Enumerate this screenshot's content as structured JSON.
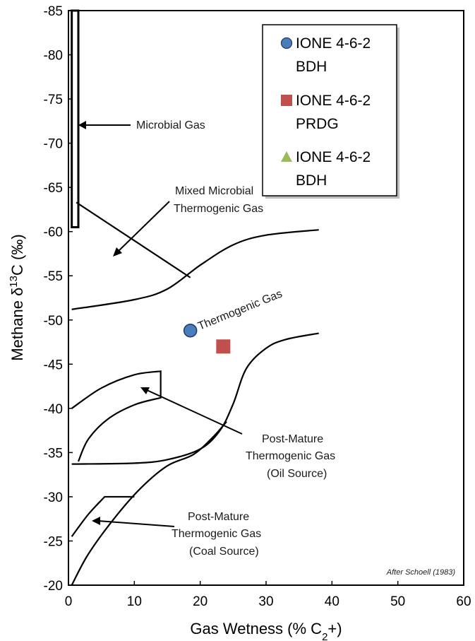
{
  "chart_data": {
    "type": "scatter",
    "xlabel": "Gas Wetness (% C",
    "xlabel_sub": "2",
    "xlabel_tail": "+)",
    "ylabel": "Methane  δ",
    "ylabel_sup": "13",
    "ylabel_tail": "C (‰)",
    "xlim": [
      0,
      60
    ],
    "ylim": [
      -20,
      -85
    ],
    "x_ticks": [
      "0",
      "10",
      "20",
      "30",
      "40",
      "50",
      "60"
    ],
    "y_ticks": [
      "-85",
      "-80",
      "-75",
      "-70",
      "-65",
      "-60",
      "-55",
      "-50",
      "-45",
      "-40",
      "-35",
      "-30",
      "-25",
      "-20"
    ],
    "grid": false,
    "legend_position": "top-right",
    "series": [
      {
        "name": "IONE 4-6-2 BDH",
        "name_lines": [
          "IONE 4-6-2",
          "BDH"
        ],
        "marker": "circle",
        "color": "#4a7ebb",
        "points": [
          [
            18.5,
            -48.8
          ]
        ]
      },
      {
        "name": "IONE 4-6-2 PRDG",
        "name_lines": [
          "IONE 4-6-2",
          "PRDG"
        ],
        "marker": "square",
        "color": "#c0504d",
        "points": [
          [
            23.5,
            -47.0
          ]
        ]
      },
      {
        "name": "IONE 4-6-2 BDH",
        "name_lines": [
          "IONE 4-6-2",
          "BDH"
        ],
        "marker": "triangle",
        "color": "#9bbb59",
        "points": []
      }
    ],
    "annotations": [
      {
        "id": "microbial",
        "lines": [
          "Microbial Gas"
        ]
      },
      {
        "id": "mixed",
        "lines": [
          "Mixed Microbial",
          "Thermogenic Gas"
        ]
      },
      {
        "id": "thermogenic",
        "lines": [
          "Thermogenic Gas"
        ]
      },
      {
        "id": "post-oil",
        "lines": [
          "Post-Mature",
          "Thermogenic Gas",
          "(Oil Source)"
        ]
      },
      {
        "id": "post-coal",
        "lines": [
          "Post-Mature",
          "Thermogenic Gas",
          "(Coal Source)"
        ]
      }
    ],
    "credit": "After Schoell (1983)",
    "boundaries": [
      {
        "id": "microbial-box",
        "points": [
          [
            0.5,
            -85
          ],
          [
            1.5,
            -85
          ],
          [
            1.5,
            -60.5
          ],
          [
            0.5,
            -60.5
          ]
        ]
      },
      {
        "id": "mixed-diagonal",
        "points": [
          [
            1.2,
            -63.3
          ],
          [
            18.5,
            -54.8
          ]
        ]
      },
      {
        "id": "thermogenic-upper",
        "points": [
          [
            0.5,
            -51.2
          ],
          [
            10,
            -52.3
          ],
          [
            15,
            -53.5
          ],
          [
            20,
            -56.2
          ],
          [
            25,
            -58.5
          ],
          [
            30,
            -59.6
          ],
          [
            38,
            -60.2
          ]
        ]
      },
      {
        "id": "oil-upper",
        "points": [
          [
            0.5,
            -40.0
          ],
          [
            5,
            -42.3
          ],
          [
            10,
            -43.8
          ],
          [
            14,
            -44.2
          ],
          [
            14,
            -41.2
          ],
          [
            10,
            -40.4
          ],
          [
            6,
            -38.8
          ],
          [
            3,
            -36.5
          ],
          [
            1.5,
            -34.0
          ]
        ]
      },
      {
        "id": "oil-lower",
        "points": [
          [
            0.5,
            -33.7
          ],
          [
            10,
            -33.8
          ],
          [
            15,
            -34.2
          ],
          [
            20,
            -35.4
          ],
          [
            23,
            -37.5
          ],
          [
            25,
            -40.5
          ],
          [
            27,
            -44.5
          ],
          [
            30,
            -46.8
          ],
          [
            33,
            -47.8
          ],
          [
            38,
            -48.5
          ]
        ]
      },
      {
        "id": "coal-upper",
        "points": [
          [
            0.5,
            -25.5
          ],
          [
            3,
            -28.0
          ],
          [
            5.5,
            -30.0
          ],
          [
            10,
            -30.0
          ]
        ]
      },
      {
        "id": "coal-lower",
        "points": [
          [
            0.5,
            -20.0
          ],
          [
            3,
            -23.5
          ],
          [
            7,
            -27.6
          ],
          [
            11,
            -31.0
          ],
          [
            15,
            -33.5
          ],
          [
            19,
            -34.8
          ],
          [
            22,
            -36.8
          ],
          [
            24,
            -38.5
          ]
        ]
      }
    ]
  }
}
